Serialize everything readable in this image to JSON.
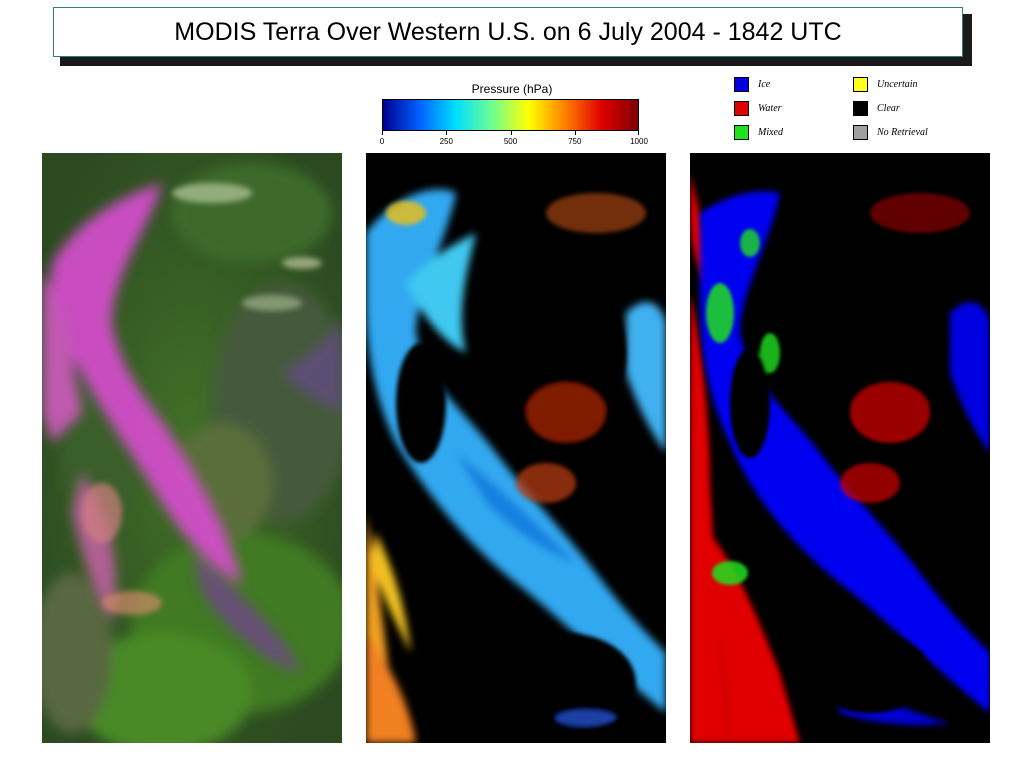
{
  "title": "MODIS Terra Over Western U.S. on 6 July 2004 - 1842 UTC",
  "colorbar": {
    "title": "Pressure (hPa)",
    "ticks": [
      "0",
      "250",
      "500",
      "750",
      "1000"
    ],
    "range": [
      0,
      1000
    ],
    "colors": [
      "#00008f",
      "#0060ff",
      "#00e0ff",
      "#70ff90",
      "#ffff00",
      "#ff8000",
      "#e00000",
      "#800000"
    ]
  },
  "legend": {
    "items": [
      {
        "label": "Ice",
        "color": "#0000e0"
      },
      {
        "label": "Water",
        "color": "#e00000"
      },
      {
        "label": "Mixed",
        "color": "#20e020"
      },
      {
        "label": "Uncertain",
        "color": "#ffff20"
      },
      {
        "label": "Clear",
        "color": "#000000"
      },
      {
        "label": "No Retrieval",
        "color": "#a0a0a0"
      }
    ]
  },
  "panels": [
    {
      "name": "true-color-composite"
    },
    {
      "name": "cloud-top-pressure"
    },
    {
      "name": "cloud-phase"
    }
  ]
}
